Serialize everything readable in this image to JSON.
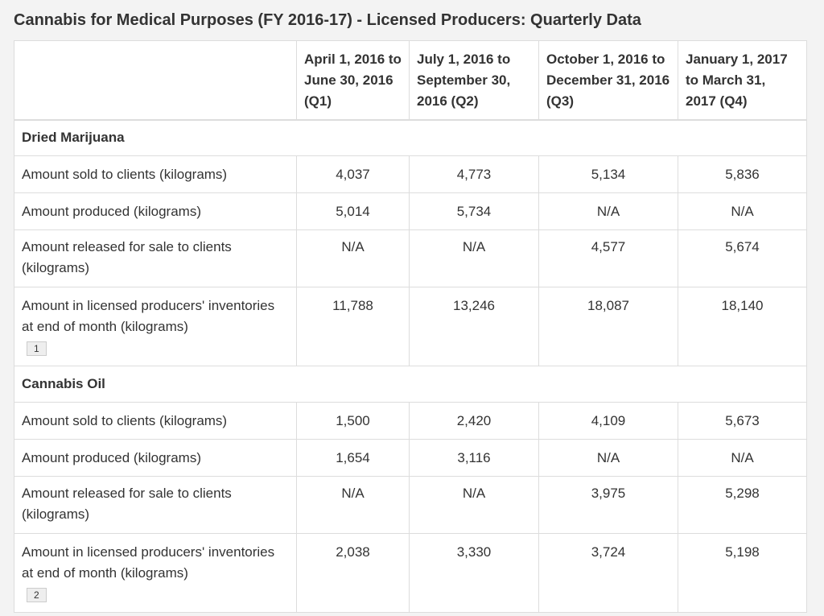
{
  "caption": "Cannabis for Medical Purposes (FY 2016-17) - Licensed Producers: Quarterly Data",
  "headers": [
    "",
    "April 1, 2016 to June 30, 2016 (Q1)",
    "July 1, 2016 to September 30, 2016 (Q2)",
    "October 1, 2016 to December 31, 2016 (Q3)",
    "January 1, 2017 to March 31, 2017 (Q4)"
  ],
  "sections": [
    {
      "title": "Dried Marijuana",
      "rows": [
        {
          "label": "Amount sold to clients (kilograms)",
          "values": [
            "4,037",
            "4,773",
            "5,134",
            "5,836"
          ]
        },
        {
          "label": "Amount produced (kilograms)",
          "values": [
            "5,014",
            "5,734",
            "N/A",
            "N/A"
          ]
        },
        {
          "label": "Amount released for sale to clients (kilograms)",
          "values": [
            "N/A",
            "N/A",
            "4,577",
            "5,674"
          ]
        },
        {
          "label": "Amount in licensed producers' inventories at end of month (kilograms)",
          "footnote": "1",
          "values": [
            "11,788",
            "13,246",
            "18,087",
            "18,140"
          ]
        }
      ]
    },
    {
      "title": "Cannabis Oil",
      "rows": [
        {
          "label": "Amount sold to clients (kilograms)",
          "values": [
            "1,500",
            "2,420",
            "4,109",
            "5,673"
          ]
        },
        {
          "label": "Amount produced (kilograms)",
          "values": [
            "1,654",
            "3,116",
            "N/A",
            "N/A"
          ]
        },
        {
          "label": "Amount released for sale to clients (kilograms)",
          "values": [
            "N/A",
            "N/A",
            "3,975",
            "5,298"
          ]
        },
        {
          "label": "Amount in licensed producers' inventories at end of month (kilograms)",
          "footnote": "2",
          "values": [
            "2,038",
            "3,330",
            "3,724",
            "5,198"
          ]
        }
      ]
    }
  ]
}
